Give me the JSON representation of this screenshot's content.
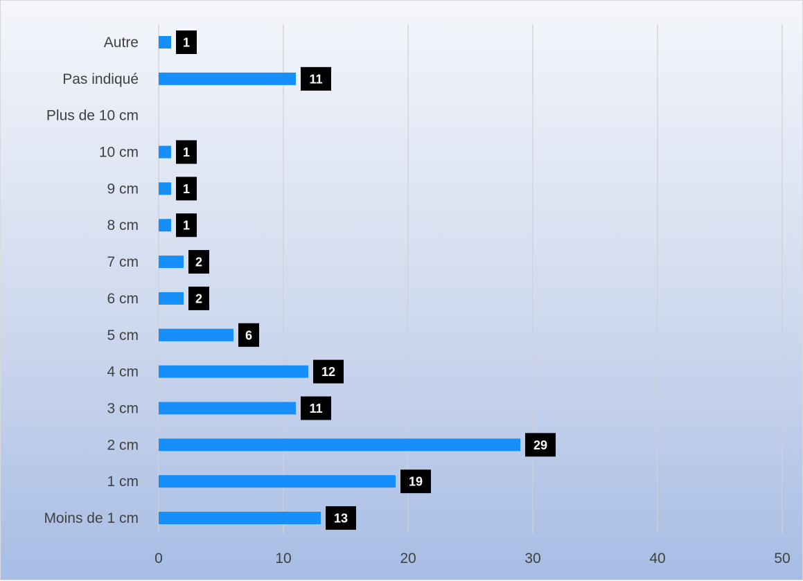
{
  "chart_data": {
    "type": "bar",
    "orientation": "horizontal",
    "categories": [
      "Moins de 1 cm",
      "1 cm",
      "2 cm",
      "3 cm",
      "4 cm",
      "5 cm",
      "6 cm",
      "7 cm",
      "8 cm",
      "9 cm",
      "10 cm",
      "Plus de 10 cm",
      "Pas indiqué",
      "Autre"
    ],
    "values": [
      13,
      19,
      29,
      11,
      12,
      6,
      2,
      2,
      1,
      1,
      1,
      0,
      11,
      1
    ],
    "data_labels": [
      "13",
      "19",
      "29",
      "11",
      "12",
      "6",
      "2",
      "2",
      "1",
      "1",
      "1",
      "",
      "11",
      "1"
    ],
    "xlim": [
      0,
      50
    ],
    "x_ticks": [
      "0",
      "10",
      "20",
      "30",
      "40",
      "50"
    ],
    "title": "",
    "xlabel": "",
    "ylabel": "",
    "grid": "vertical",
    "legend": "none",
    "colors": {
      "bar": "#168ffb",
      "label_bg": "#000000",
      "label_text": "#ffffff",
      "grid": "#d0d0d0",
      "axis_text": "#404040"
    }
  }
}
